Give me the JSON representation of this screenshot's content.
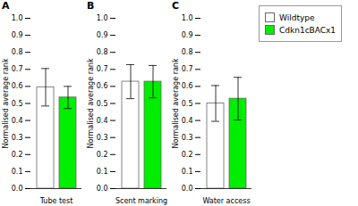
{
  "chart_data": [
    {
      "type": "bar",
      "title": "A",
      "xlabel": "Tube test",
      "ylabel": "Normalised average rank",
      "series": [
        {
          "name": "Wildtype",
          "color": "#ffffff",
          "values": [
            0.595
          ],
          "errors": [
            0.11
          ]
        },
        {
          "name": "Cdkn1cBACx1",
          "color": "#00ee00",
          "values": [
            0.535
          ],
          "errors": [
            0.065
          ]
        }
      ],
      "ylim": [
        0,
        1.0
      ],
      "yticks": [
        {
          "value": 0,
          "label": "0.0"
        },
        0.1,
        0.2,
        0.3,
        0.4,
        0.5,
        0.6,
        0.7,
        0.8,
        0.9,
        {
          "value": 1.0,
          "label": "1.0"
        }
      ],
      "grid": false,
      "tick_labels": "y"
    },
    {
      "type": "bar",
      "title": "B",
      "xlabel": "Scent marking",
      "ylabel": "Normalised average rank",
      "series": [
        {
          "name": "Wildtype",
          "color": "#ffffff",
          "values": [
            0.628
          ],
          "errors": [
            0.1
          ]
        },
        {
          "name": "Cdkn1cBACx1",
          "color": "#00ee00",
          "values": [
            0.628
          ],
          "errors": [
            0.095
          ]
        }
      ],
      "ylim": [
        0,
        1.0
      ],
      "yticks": [
        {
          "value": 0,
          "label": "0.0"
        },
        0.1,
        0.2,
        0.3,
        0.4,
        0.5,
        0.6,
        0.7,
        0.8,
        0.9,
        {
          "value": 1.0,
          "label": "1.0"
        }
      ],
      "grid": false,
      "tick_labels": "y"
    },
    {
      "type": "bar",
      "title": "C",
      "xlabel": "Water access",
      "ylabel": "Normalised average rank",
      "series": [
        {
          "name": "Wildtype",
          "color": "#ffffff",
          "values": [
            0.5
          ],
          "errors": [
            0.105
          ]
        },
        {
          "name": "Cdkn1cBACx1",
          "color": "#00ee00",
          "values": [
            0.528
          ],
          "errors": [
            0.125
          ]
        }
      ],
      "ylim": [
        0,
        1.0
      ],
      "yticks": [
        {
          "value": 0,
          "label": "0.0"
        },
        0.1,
        0.2,
        0.3,
        0.4,
        0.5,
        0.6,
        0.7,
        0.8,
        0.9,
        {
          "value": 1.0,
          "label": "1.0"
        }
      ],
      "grid": false,
      "tick_labels": "y",
      "legend": "upper right"
    }
  ]
}
